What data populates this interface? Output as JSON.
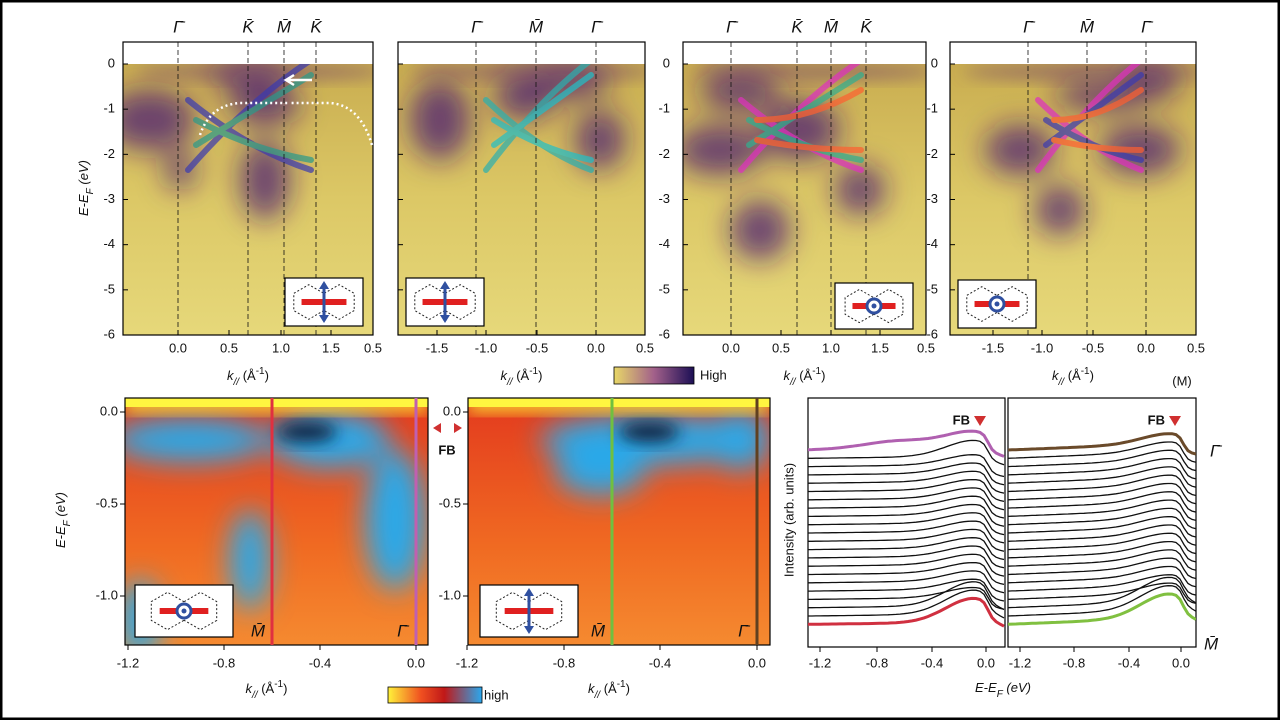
{
  "top_row": {
    "panels": [
      {
        "points": [
          "Γ̄",
          "K̄",
          "M̄",
          "K̄"
        ],
        "xticks": [
          "0.0",
          "0.5",
          "1.0",
          "1.5",
          "0.5"
        ]
      },
      {
        "points": [
          "Γ̄",
          "M̄",
          "Γ̄"
        ],
        "xticks": [
          "-1.5",
          "-1.0",
          "-0.5",
          "0.0",
          "0.5"
        ]
      },
      {
        "points": [
          "Γ̄",
          "K̄",
          "M̄",
          "K̄"
        ],
        "xticks": [
          "0.0",
          "0.5",
          "1.0",
          "1.5",
          "0.5"
        ]
      },
      {
        "points": [
          "Γ̄",
          "M̄",
          "Γ̄"
        ],
        "xticks": [
          "-1.5",
          "-1.0",
          "-0.5",
          "0.0",
          "0.5"
        ]
      }
    ],
    "yticks": [
      "0",
      "-1",
      "-2",
      "-3",
      "-4",
      "-5",
      "-6"
    ],
    "xlabel": [
      "k",
      "//",
      " (Å",
      "-1",
      ")"
    ],
    "ylabel": [
      "E-E",
      "F",
      " (eV)"
    ],
    "colorbar_label": "High"
  },
  "bottom_row": {
    "panels": [
      {
        "points": [
          "M̄",
          "Γ̄"
        ],
        "xticks": [
          "-1.2",
          "-0.8",
          "-0.4",
          "0.0"
        ]
      },
      {
        "points": [
          "M̄",
          "Γ̄"
        ],
        "xticks": [
          "-1.2",
          "-0.8",
          "-0.4",
          "0.0"
        ]
      }
    ],
    "yticks": [
      "0.0",
      "-0.5",
      "-1.0"
    ],
    "fb_label": "FB",
    "colorbar_label": "high"
  },
  "edc": {
    "panels": [
      {
        "xticks": [
          "-1.2",
          "-0.8",
          "-0.4",
          "0.0"
        ]
      },
      {
        "xticks": [
          "-1.2",
          "-0.8",
          "-0.4",
          "0.0"
        ]
      }
    ],
    "fb_label": "FB",
    "ylabel": "Intensity (arb. units)",
    "corner_note": "(M)",
    "top_point": "Γ̄",
    "bottom_point": "M̄"
  }
}
